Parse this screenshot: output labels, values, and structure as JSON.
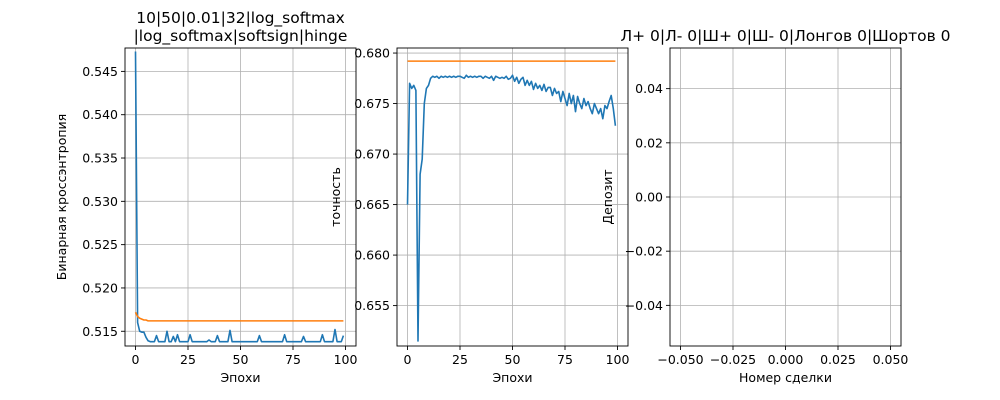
{
  "chart_data": [
    {
      "type": "line",
      "title": [
        "10|50|0.01|32|log_softmax",
        "|log_softmax|softsign|hinge"
      ],
      "xlabel": "Эпохи",
      "ylabel": "Бинарная кроссэнтропия",
      "xlim": [
        -5,
        105
      ],
      "ylim": [
        0.5133,
        0.5477
      ],
      "xticks": [
        0,
        25,
        50,
        75,
        100
      ],
      "yticks": [
        0.515,
        0.52,
        0.525,
        0.53,
        0.535,
        0.54,
        0.545
      ],
      "yticklabels": [
        "0.515",
        "0.520",
        "0.525",
        "0.530",
        "0.535",
        "0.540",
        "0.545"
      ],
      "grid": true,
      "series": [
        {
          "color": "#1f77b4",
          "x": [
            0,
            1,
            2,
            3,
            4,
            5,
            6,
            7,
            8,
            9,
            10,
            11,
            12,
            13,
            14,
            15,
            16,
            17,
            18,
            19,
            20,
            21,
            22,
            23,
            24,
            25,
            26,
            27,
            28,
            29,
            30,
            31,
            32,
            33,
            34,
            35,
            36,
            37,
            38,
            39,
            40,
            41,
            42,
            43,
            44,
            45,
            46,
            47,
            48,
            49,
            50,
            51,
            52,
            53,
            54,
            55,
            56,
            57,
            58,
            59,
            60,
            61,
            62,
            63,
            64,
            65,
            66,
            67,
            68,
            69,
            70,
            71,
            72,
            73,
            74,
            75,
            76,
            77,
            78,
            79,
            80,
            81,
            82,
            83,
            84,
            85,
            86,
            87,
            88,
            89,
            90,
            91,
            92,
            93,
            94,
            95,
            96,
            97,
            98,
            99
          ],
          "y": [
            0.5473,
            0.516,
            0.515,
            0.5149,
            0.5149,
            0.5143,
            0.5139,
            0.5138,
            0.5138,
            0.5138,
            0.5145,
            0.5138,
            0.5138,
            0.5138,
            0.5138,
            0.515,
            0.5138,
            0.5138,
            0.5144,
            0.5138,
            0.5146,
            0.5138,
            0.5138,
            0.5138,
            0.5138,
            0.5138,
            0.5146,
            0.5138,
            0.5138,
            0.5138,
            0.5138,
            0.5138,
            0.5138,
            0.5138,
            0.5138,
            0.514,
            0.5138,
            0.5138,
            0.5138,
            0.5145,
            0.5138,
            0.5138,
            0.5138,
            0.5138,
            0.5138,
            0.5151,
            0.5138,
            0.5138,
            0.5138,
            0.5138,
            0.5138,
            0.5138,
            0.5138,
            0.5138,
            0.5138,
            0.5138,
            0.5138,
            0.5138,
            0.5138,
            0.5145,
            0.5138,
            0.5138,
            0.5138,
            0.5138,
            0.5138,
            0.5138,
            0.5138,
            0.5138,
            0.5138,
            0.5138,
            0.5138,
            0.5146,
            0.5138,
            0.5138,
            0.5138,
            0.5138,
            0.5138,
            0.5138,
            0.5138,
            0.5138,
            0.5144,
            0.5138,
            0.5138,
            0.5138,
            0.5138,
            0.5138,
            0.5138,
            0.5138,
            0.5138,
            0.5146,
            0.5138,
            0.5138,
            0.5138,
            0.5138,
            0.5138,
            0.5152,
            0.5138,
            0.5138,
            0.5138,
            0.5145
          ]
        },
        {
          "color": "#ff7f0e",
          "x": [
            0,
            1,
            2,
            3,
            4,
            5,
            6,
            7,
            8,
            9,
            10,
            12,
            14,
            16,
            18,
            20,
            25,
            30,
            35,
            40,
            45,
            50,
            55,
            60,
            65,
            70,
            75,
            80,
            85,
            90,
            95,
            99
          ],
          "y": [
            0.5172,
            0.5167,
            0.5165,
            0.5164,
            0.5163,
            0.5163,
            0.5162,
            0.5162,
            0.5162,
            0.5162,
            0.5162,
            0.5162,
            0.5162,
            0.5162,
            0.5162,
            0.5162,
            0.5162,
            0.5162,
            0.5162,
            0.5162,
            0.5162,
            0.5162,
            0.5162,
            0.5162,
            0.5162,
            0.5162,
            0.5162,
            0.5162,
            0.5162,
            0.5162,
            0.5162,
            0.5162
          ]
        }
      ]
    },
    {
      "type": "line",
      "title": [],
      "xlabel": "Эпохи",
      "ylabel": "точность",
      "xlim": [
        -5,
        105
      ],
      "ylim": [
        0.651,
        0.6805
      ],
      "xticks": [
        0,
        25,
        50,
        75,
        100
      ],
      "yticks": [
        0.655,
        0.66,
        0.665,
        0.67,
        0.675,
        0.68
      ],
      "yticklabels": [
        "0.655",
        "0.660",
        "0.665",
        "0.670",
        "0.675",
        "0.680"
      ],
      "grid": true,
      "series": [
        {
          "color": "#1f77b4",
          "x": [
            0,
            1,
            2,
            3,
            4,
            5,
            6,
            7,
            8,
            9,
            10,
            11,
            12,
            13,
            14,
            15,
            16,
            17,
            18,
            19,
            20,
            21,
            22,
            23,
            24,
            25,
            26,
            27,
            28,
            29,
            30,
            31,
            32,
            33,
            34,
            35,
            36,
            37,
            38,
            39,
            40,
            41,
            42,
            43,
            44,
            45,
            46,
            47,
            48,
            49,
            50,
            51,
            52,
            53,
            54,
            55,
            56,
            57,
            58,
            59,
            60,
            61,
            62,
            63,
            64,
            65,
            66,
            67,
            68,
            69,
            70,
            71,
            72,
            73,
            74,
            75,
            76,
            77,
            78,
            79,
            80,
            81,
            82,
            83,
            84,
            85,
            86,
            87,
            88,
            89,
            90,
            91,
            92,
            93,
            94,
            95,
            96,
            97,
            98,
            99
          ],
          "y": [
            0.665,
            0.677,
            0.6765,
            0.6768,
            0.6763,
            0.6515,
            0.668,
            0.6695,
            0.675,
            0.6765,
            0.6768,
            0.6775,
            0.6777,
            0.6776,
            0.6777,
            0.6775,
            0.6777,
            0.6776,
            0.6777,
            0.6776,
            0.6777,
            0.6776,
            0.6777,
            0.6776,
            0.6777,
            0.6777,
            0.6776,
            0.6775,
            0.6778,
            0.6776,
            0.6777,
            0.6776,
            0.6777,
            0.6776,
            0.6777,
            0.6777,
            0.6775,
            0.6777,
            0.6776,
            0.6775,
            0.6777,
            0.6773,
            0.6777,
            0.6776,
            0.6775,
            0.6776,
            0.6775,
            0.6777,
            0.6774,
            0.6775,
            0.6778,
            0.6772,
            0.6776,
            0.677,
            0.6774,
            0.6776,
            0.6768,
            0.6773,
            0.6768,
            0.6772,
            0.6764,
            0.677,
            0.6765,
            0.6768,
            0.6763,
            0.6769,
            0.6762,
            0.6766,
            0.6766,
            0.6758,
            0.6765,
            0.676,
            0.6762,
            0.6752,
            0.6762,
            0.6755,
            0.6748,
            0.676,
            0.675,
            0.6758,
            0.6742,
            0.6757,
            0.675,
            0.6745,
            0.6755,
            0.6748,
            0.6752,
            0.6745,
            0.674,
            0.675,
            0.6745,
            0.674,
            0.6745,
            0.6735,
            0.6748,
            0.6745,
            0.6752,
            0.6758,
            0.6745,
            0.6728
          ]
        },
        {
          "color": "#ff7f0e",
          "x": [
            0,
            99
          ],
          "y": [
            0.6792,
            0.6792
          ]
        }
      ]
    },
    {
      "type": "line",
      "title": [
        "Л+ 0|Л- 0|Ш+ 0|Ш- 0|Лонгов 0|Шортов 0"
      ],
      "xlabel": "Номер сделки",
      "ylabel": "Депозит",
      "xlim": [
        -0.055,
        0.055
      ],
      "ylim": [
        -0.055,
        0.055
      ],
      "xticks": [
        -0.05,
        -0.025,
        0,
        0.025,
        0.05
      ],
      "xticklabels": [
        "−0.050",
        "−0.025",
        "0.000",
        "0.025",
        "0.050"
      ],
      "yticks": [
        -0.04,
        -0.02,
        0,
        0.02,
        0.04
      ],
      "yticklabels": [
        "−0.04",
        "−0.02",
        "0.00",
        "0.02",
        "0.04"
      ],
      "grid": true,
      "series": []
    }
  ]
}
